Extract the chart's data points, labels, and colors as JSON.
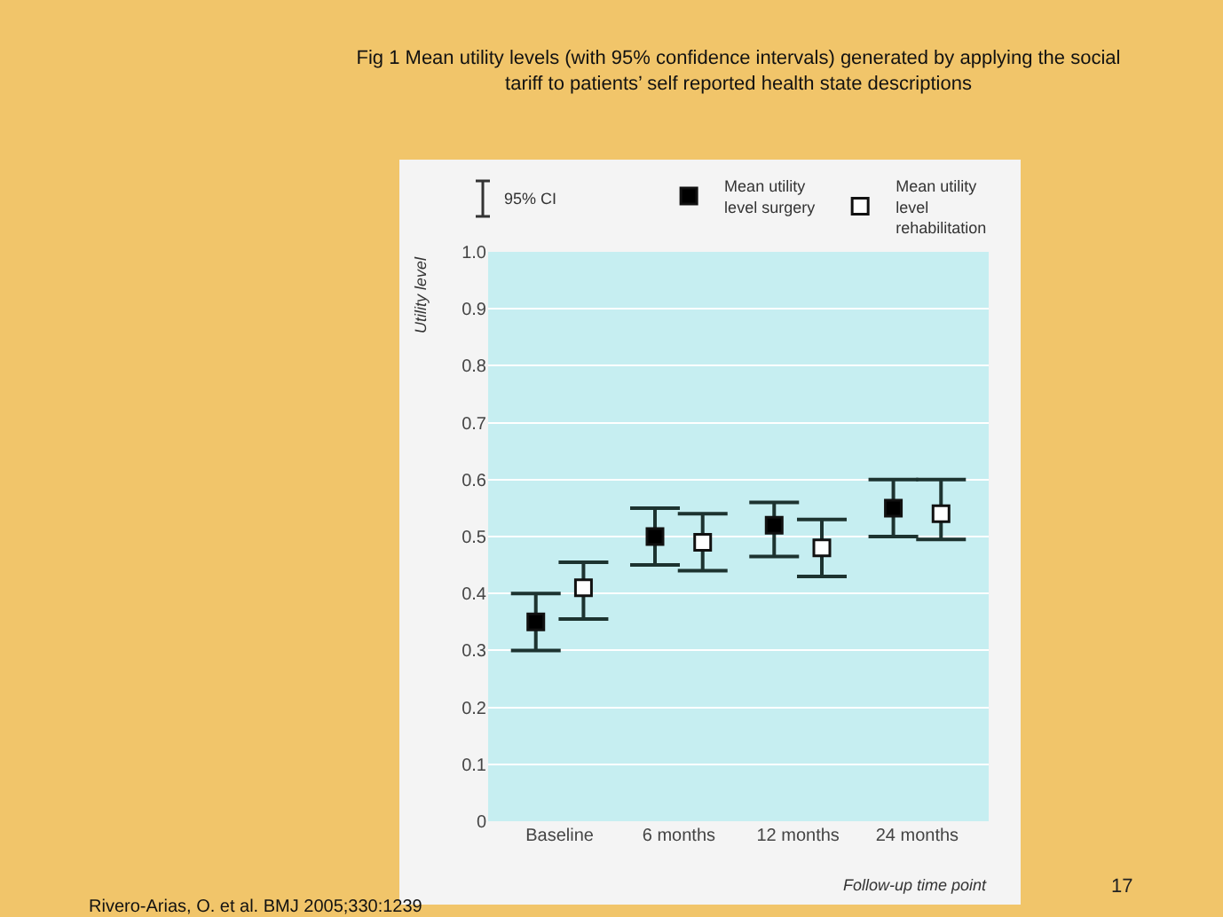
{
  "chart_data": {
    "type": "scatter",
    "title": "Fig 1 Mean utility levels (with 95% confidence intervals) generated by applying the social tariff to patients’ self reported health state descriptions",
    "xlabel": "Follow-up time point",
    "ylabel": "Utility level",
    "categories": [
      "Baseline",
      "6 months",
      "12 months",
      "24 months"
    ],
    "series": [
      {
        "name": "Mean utility level surgery",
        "color": "#000000",
        "values": [
          0.35,
          0.5,
          0.52,
          0.55
        ],
        "errors": [
          [
            0.3,
            0.4
          ],
          [
            0.45,
            0.55
          ],
          [
            0.465,
            0.56
          ],
          [
            0.5,
            0.6
          ]
        ]
      },
      {
        "name": "Mean utility level rehabilitation",
        "color": "#ffffff",
        "values": [
          0.41,
          0.49,
          0.48,
          0.54
        ],
        "errors": [
          [
            0.355,
            0.455
          ],
          [
            0.44,
            0.54
          ],
          [
            0.43,
            0.53
          ],
          [
            0.495,
            0.6
          ]
        ]
      }
    ],
    "ylim": [
      0,
      1
    ],
    "yticks": [
      0,
      0.1,
      0.2,
      0.3,
      0.4,
      0.5,
      0.6,
      0.7,
      0.8,
      0.9,
      {
        "value": 1,
        "label": "1.0"
      }
    ],
    "grid": "y",
    "legend": "top",
    "marker": "square",
    "annotations": [
      "95% CI",
      "Rivero-Arias, O. et al. BMJ 2005;330:1239",
      "17"
    ]
  }
}
